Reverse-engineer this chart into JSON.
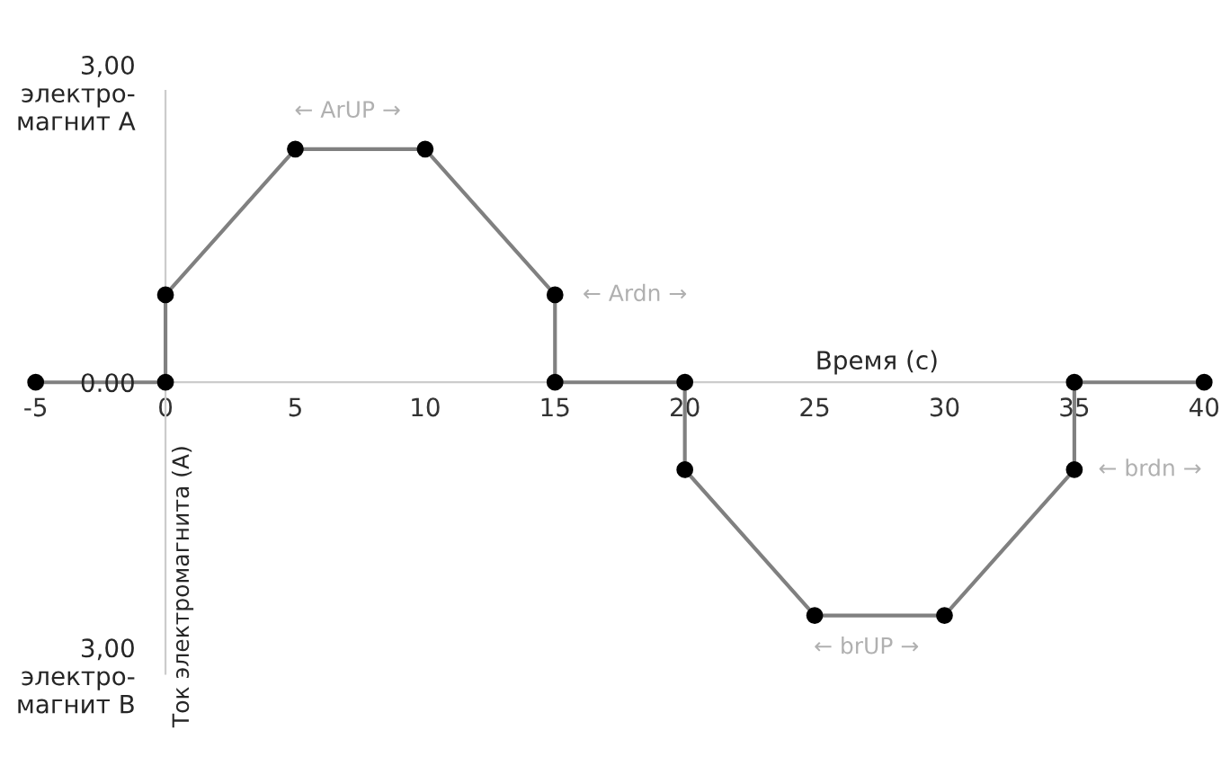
{
  "chart_data": {
    "type": "line",
    "xlabel": "Время (с)",
    "ylabel": "Ток электромагнита (А)",
    "series": [
      {
        "color": "#808080",
        "x": [
          -5,
          0,
          0,
          5,
          10,
          15,
          15,
          20,
          20,
          25,
          30,
          35,
          35,
          40
        ],
        "values": [
          0,
          0,
          0.9,
          2.4,
          2.4,
          0.9,
          0,
          0,
          -0.9,
          -2.4,
          -2.4,
          -0.9,
          0,
          0
        ]
      }
    ],
    "xlim": [
      -5,
      40
    ],
    "xticks": [
      -5,
      0,
      5,
      10,
      15,
      20,
      25,
      30,
      35,
      40
    ],
    "ylim": [
      -3,
      3
    ],
    "yticks": [
      {
        "value": -3,
        "label": "3,00\nэлектро-\nмагнит B"
      },
      {
        "value": 0,
        "label": "0.00"
      },
      {
        "value": 3,
        "label": "3,00\nэлектро-\nмагнит A"
      }
    ],
    "annotations": [
      "← ArUP →",
      "← Ardn →",
      "← brUP →",
      "← brdn →"
    ],
    "marker": "circle",
    "line_style": "solid",
    "grid": false,
    "legend": false
  }
}
